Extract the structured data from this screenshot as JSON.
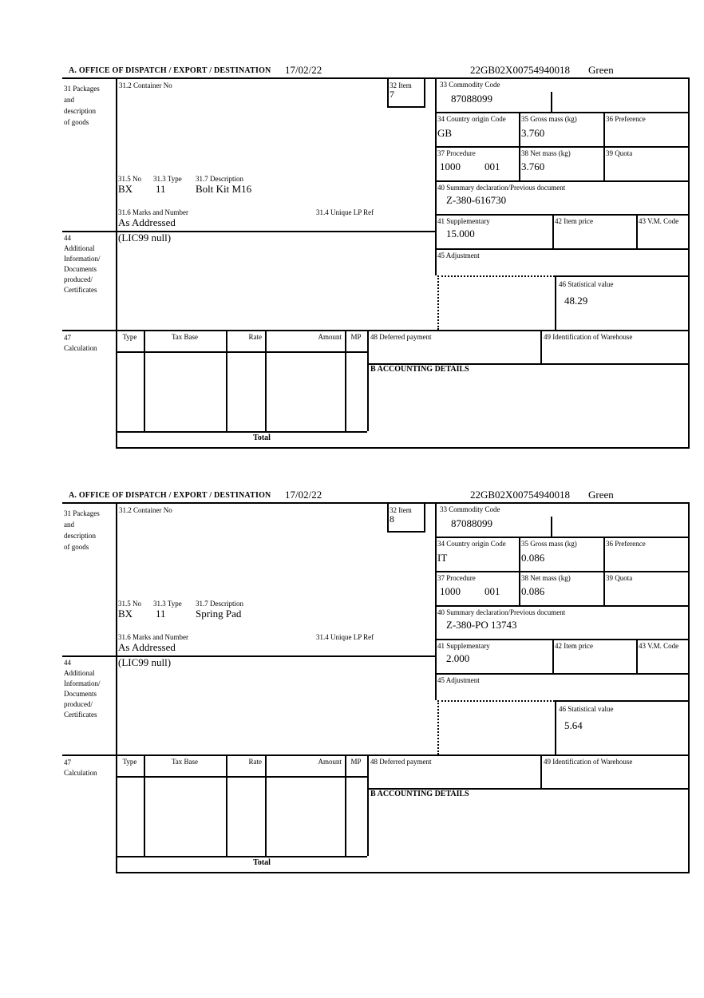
{
  "labels": {
    "box31_l1": "31 Packages",
    "box31_l2": "and",
    "box31_l3": "description",
    "box31_l4": "of goods",
    "container_no": "31.2 Container No",
    "item": "32 Item",
    "commodity_code": "33 Commodity Code",
    "country_origin": "34 Country origin Code",
    "gross_mass": "35 Gross mass (kg)",
    "preference": "36 Preference",
    "procedure": "37 Procedure",
    "net_mass": "38 Net mass (kg)",
    "quota": "39 Quota",
    "summary_declaration": "40 Summary declaration/Previous document",
    "supplementary": "41 Supplementary",
    "item_price": "42 Item price",
    "vm_code": "43 V.M. Code",
    "box44_l1": "44",
    "box44_l2": "Additional",
    "box44_l3": "Information/",
    "box44_l4": "Documents",
    "box44_l5": "produced/",
    "box44_l6": "Certificates",
    "adjustment": "45 Adjustment",
    "statistical_value": "46 Statistical value",
    "box47_l1": "47",
    "box47_l2": "Calculation",
    "pkg_no": "31.5 No",
    "pkg_type": "31.3 Type",
    "pkg_description": "31.7 Description",
    "marks_and_number": "31.6 Marks and Number",
    "unique_lp_ref": "31.4 Unique LP Ref",
    "tax_type": "Type",
    "tax_base": "Tax Base",
    "tax_rate": "Rate",
    "tax_amount": "Amount",
    "tax_mp": "MP",
    "deferred_payment": "48 Deferred payment",
    "warehouse_id": "49 Identification of Warehouse",
    "accounting_details": "B ACCOUNTING DETAILS",
    "total": "Total"
  },
  "items": [
    {
      "section_title": "A.  OFFICE OF DISPATCH / EXPORT / DESTINATION",
      "date": "17/02/22",
      "entry_number": "22GB02X00754940018",
      "routing": "Green",
      "item_number": "7",
      "commodity_code": "87088099",
      "country_origin": "GB",
      "gross_mass": "3.760",
      "procedure_1": "1000",
      "procedure_2": "001",
      "net_mass": "3.760",
      "previous_document": "Z-380-616730",
      "supplementary": "15.000",
      "statistical_value": "48.29",
      "package_no": "BX",
      "package_type": "11",
      "goods_description": "Bolt Kit M16",
      "marks_and_number": "As Addressed",
      "additional_information": "(LIC99 null)"
    },
    {
      "section_title": "A.  OFFICE OF DISPATCH / EXPORT / DESTINATION",
      "date": "17/02/22",
      "entry_number": "22GB02X00754940018",
      "routing": "Green",
      "item_number": "8",
      "commodity_code": "87088099",
      "country_origin": "IT",
      "gross_mass": "0.086",
      "procedure_1": "1000",
      "procedure_2": "001",
      "net_mass": "0.086",
      "previous_document": "Z-380-PO 13743",
      "supplementary": "2.000",
      "statistical_value": "5.64",
      "package_no": "BX",
      "package_type": "11",
      "goods_description": "Spring Pad",
      "marks_and_number": "As Addressed",
      "additional_information": "(LIC99 null)"
    }
  ]
}
